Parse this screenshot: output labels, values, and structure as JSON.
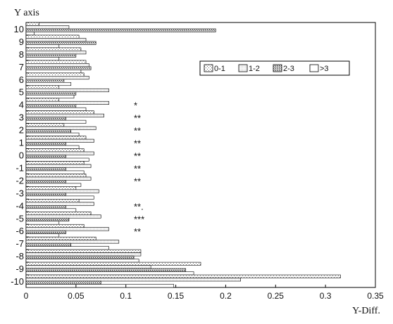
{
  "chart_data": {
    "type": "bar",
    "orientation": "horizontal",
    "title": "",
    "ylabel": "Y axis",
    "xlabel": "Y-Diff.",
    "xlim": [
      0,
      0.35
    ],
    "x_ticks": [
      "0",
      "0.05",
      "0.1",
      "0.15",
      "0.2",
      "0.25",
      "0.3",
      "0.35"
    ],
    "categories": [
      "10",
      "9",
      "8",
      "7",
      "6",
      "5",
      "4",
      "3",
      "2",
      "1",
      "0",
      "-1",
      "-2",
      "-3",
      "-4",
      "-5",
      "-6",
      "-7",
      "-8",
      "-9",
      "-10"
    ],
    "legend": {
      "position": "top-right",
      "entries": [
        "0-1",
        "1-2",
        "2-3",
        ">3"
      ]
    },
    "series": [
      {
        "name": "0-1",
        "values": [
          0.013,
          0.053,
          0.055,
          0.06,
          0.058,
          0.033,
          0.033,
          0.068,
          0.038,
          0.06,
          0.058,
          0.058,
          0.06,
          0.05,
          0.053,
          0.065,
          0.058,
          0.07,
          0.115,
          0.175,
          0.315
        ]
      },
      {
        "name": "1-2",
        "values": [
          0.043,
          0.06,
          0.06,
          0.063,
          0.063,
          0.083,
          0.083,
          0.078,
          0.07,
          0.068,
          0.068,
          0.065,
          0.065,
          0.073,
          0.068,
          0.075,
          0.083,
          0.093,
          0.115,
          0.125,
          0.215
        ]
      },
      {
        "name": "2-3",
        "values": [
          0.19,
          0.07,
          0.05,
          0.065,
          0.038,
          0.05,
          0.05,
          0.04,
          0.045,
          0.04,
          0.04,
          0.04,
          0.04,
          0.04,
          0.04,
          0.043,
          0.04,
          0.045,
          0.108,
          0.16,
          0.075
        ]
      },
      {
        "name": ">3",
        "values": [
          0.008,
          0.033,
          0.033,
          0.055,
          0.045,
          0.048,
          0.06,
          0.06,
          0.053,
          0.053,
          0.063,
          0.058,
          0.055,
          0.068,
          0.05,
          0.033,
          0.033,
          0.083,
          0.113,
          0.168,
          0.148
        ]
      }
    ],
    "annotations": [
      {
        "category": "4",
        "text": "*"
      },
      {
        "category": "3",
        "text": "**"
      },
      {
        "category": "2",
        "text": "**"
      },
      {
        "category": "1",
        "text": "**"
      },
      {
        "category": "0",
        "text": "**"
      },
      {
        "category": "-1",
        "text": "**"
      },
      {
        "category": "-2",
        "text": "**"
      },
      {
        "category": "-4",
        "text": "**."
      },
      {
        "category": "-5",
        "text": "***"
      },
      {
        "category": "-6",
        "text": "**"
      }
    ],
    "grid": false
  }
}
